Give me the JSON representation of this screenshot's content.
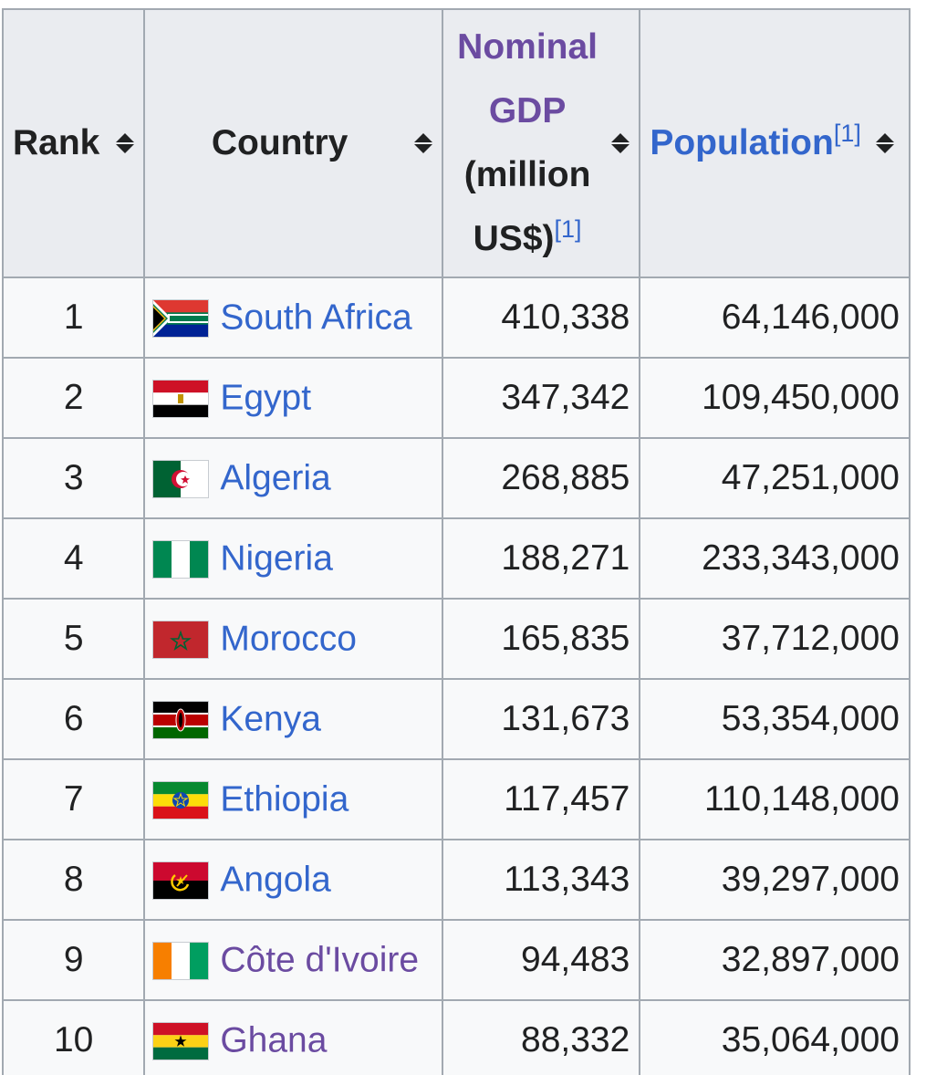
{
  "header": {
    "rank": "Rank",
    "country": "Country",
    "gdp_line1": "Nominal",
    "gdp_line2": "GDP",
    "gdp_line3": "(million",
    "gdp_line4": "US$)",
    "gdp_ref": "[1]",
    "population": "Population",
    "population_ref": "[1]"
  },
  "rows": [
    {
      "rank": "1",
      "country": "South Africa",
      "gdp": "410,338",
      "population": "64,146,000",
      "flag": "south-africa-flag"
    },
    {
      "rank": "2",
      "country": "Egypt",
      "gdp": "347,342",
      "population": "109,450,000",
      "flag": "egypt-flag"
    },
    {
      "rank": "3",
      "country": "Algeria",
      "gdp": "268,885",
      "population": "47,251,000",
      "flag": "algeria-flag"
    },
    {
      "rank": "4",
      "country": "Nigeria",
      "gdp": "188,271",
      "population": "233,343,000",
      "flag": "nigeria-flag"
    },
    {
      "rank": "5",
      "country": "Morocco",
      "gdp": "165,835",
      "population": "37,712,000",
      "flag": "morocco-flag"
    },
    {
      "rank": "6",
      "country": "Kenya",
      "gdp": "131,673",
      "population": "53,354,000",
      "flag": "kenya-flag"
    },
    {
      "rank": "7",
      "country": "Ethiopia",
      "gdp": "117,457",
      "population": "110,148,000",
      "flag": "ethiopia-flag"
    },
    {
      "rank": "8",
      "country": "Angola",
      "gdp": "113,343",
      "population": "39,297,000",
      "flag": "angola-flag"
    },
    {
      "rank": "9",
      "country": "Côte d'Ivoire",
      "gdp": "94,483",
      "population": "32,897,000",
      "flag": "cote-divoire-flag"
    },
    {
      "rank": "10",
      "country": "Ghana",
      "gdp": "88,332",
      "population": "35,064,000",
      "flag": "ghana-flag"
    }
  ],
  "colors": {
    "link": "#3366cc",
    "visited_link": "#6b4ba1",
    "header_bg": "#eaecf0",
    "cell_bg": "#f8f9fa",
    "border": "#a2a9b1"
  }
}
